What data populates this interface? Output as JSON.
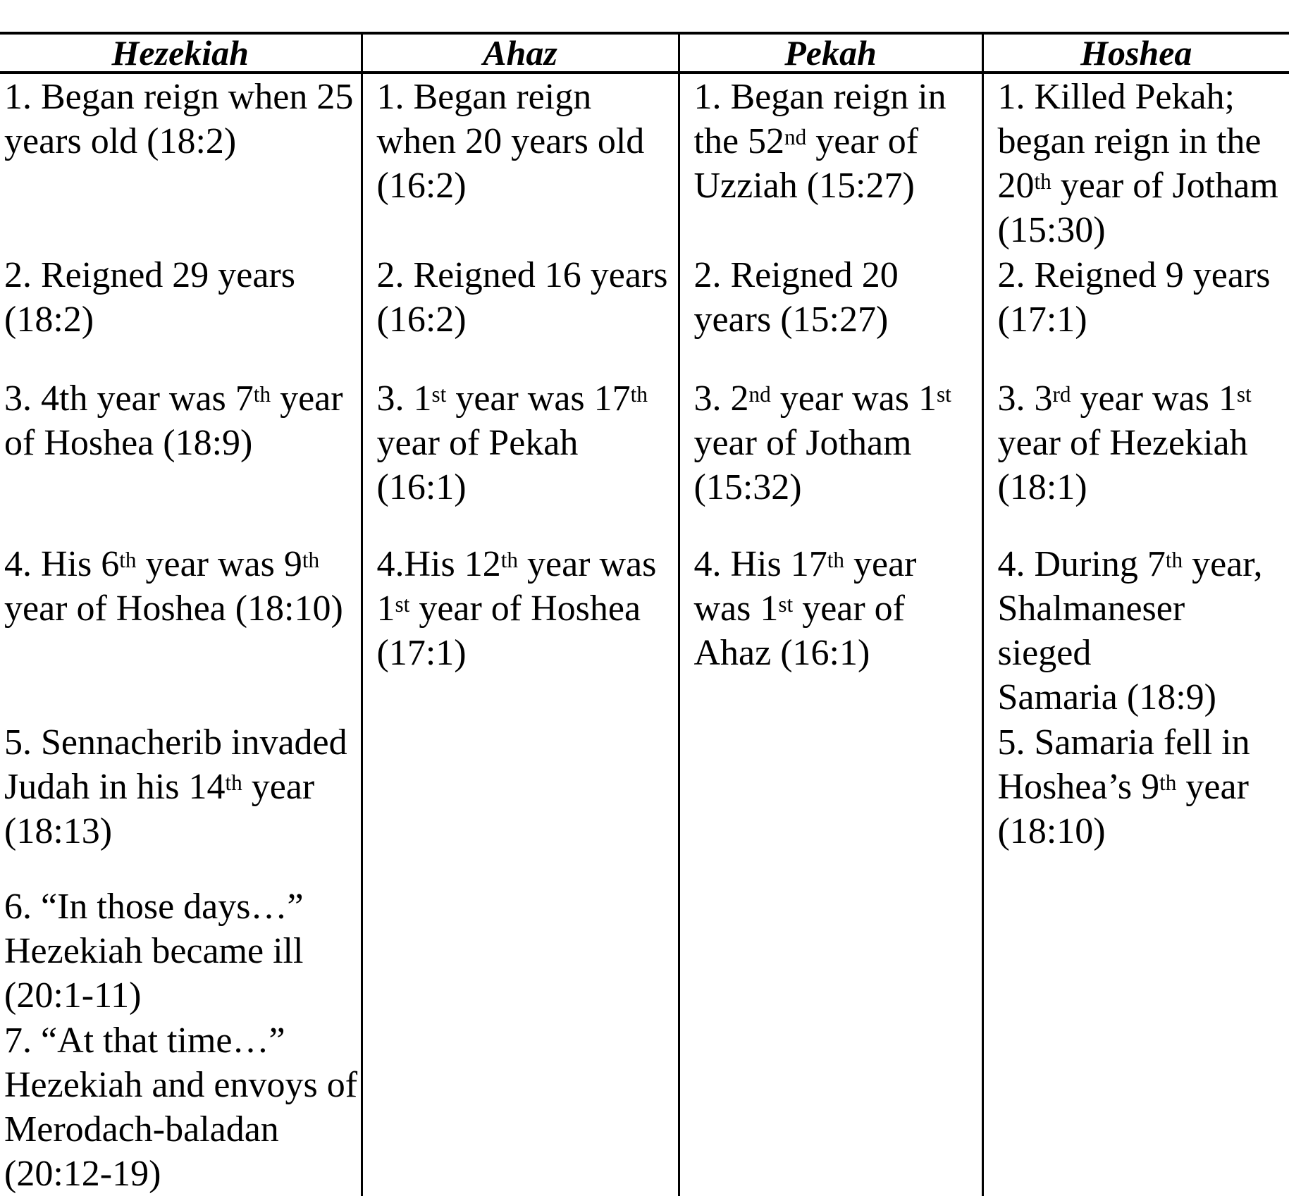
{
  "page": {
    "ink_color": "#000000",
    "background_color": "#ffffff"
  },
  "table": {
    "headers": [
      {
        "label": "Hezekiah"
      },
      {
        "label": "Ahaz"
      },
      {
        "label": "Pekah"
      },
      {
        "label": "Hoshea"
      }
    ],
    "rows": [
      {
        "cells": [
          "1. Began reign when 25\nyears old (18:2)",
          "1. Began reign\nwhen 20 years old\n(16:2)",
          "1. Began reign in\nthe 52^{nd} year of\nUzziah (15:27)",
          "1. Killed Pekah;\nbegan reign in the\n20^{th} year of Jotham\n(15:30)"
        ]
      },
      {
        "cells": [
          "2. Reigned 29 years\n(18:2)",
          "2. Reigned 16 years\n(16:2)",
          "2. Reigned 20\nyears (15:27)",
          "2. Reigned 9 years\n(17:1)"
        ]
      },
      {
        "cells": [
          "3. 4th year was 7^{th} year\nof Hoshea (18:9)",
          "3. 1^{st} year was 17^{th}\nyear of Pekah\n(16:1)",
          "3. 2^{nd} year was 1^{st}\nyear of Jotham\n(15:32)",
          "3. 3^{rd} year was 1^{st}\nyear of Hezekiah\n(18:1)"
        ]
      },
      {
        "cells": [
          "4. His 6^{th} year was 9^{th}\nyear of Hoshea (18:10)",
          "4.His 12^{th} year was\n1^{st} year of Hoshea\n(17:1)",
          "4. His 17^{th} year\nwas 1^{st} year of\nAhaz (16:1)",
          "4. During 7^{th} year,\nShalmaneser sieged\nSamaria (18:9)"
        ]
      },
      {
        "cells": [
          "5. Sennacherib invaded\nJudah in his 14^{th} year\n(18:13)",
          "",
          "",
          "5. Samaria fell in\nHoshea’s 9^{th} year\n(18:10)"
        ]
      },
      {
        "cells": [
          "6. “In those days…”\nHezekiah became ill\n(20:1-11)",
          "",
          "",
          ""
        ]
      },
      {
        "cells": [
          "7. “At that time…”\nHezekiah and envoys of\nMerodach-baladan\n(20:12-19)",
          "",
          "",
          ""
        ]
      }
    ]
  }
}
